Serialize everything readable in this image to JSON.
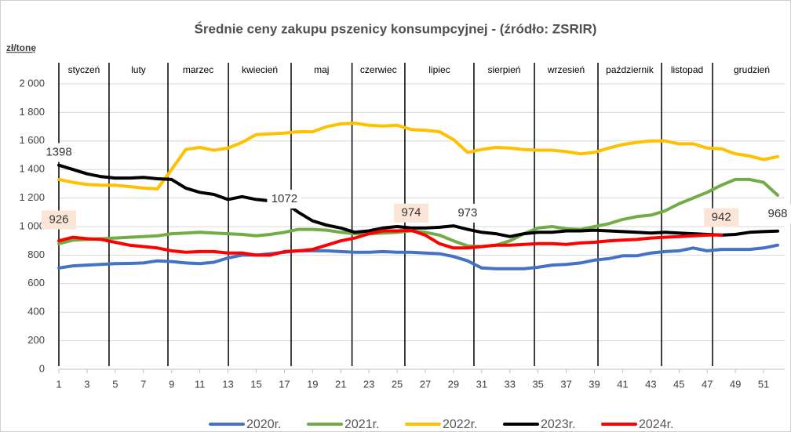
{
  "chart_data": {
    "type": "line",
    "title": "Średnie ceny zakupu pszenicy konsumpcyjnej - (źródło: ZSRIR)",
    "y_axis_label": "zł/tonę",
    "x": [
      1,
      2,
      3,
      4,
      5,
      6,
      7,
      8,
      9,
      10,
      11,
      12,
      13,
      14,
      15,
      16,
      17,
      18,
      19,
      20,
      21,
      22,
      23,
      24,
      25,
      26,
      27,
      28,
      29,
      30,
      31,
      32,
      33,
      34,
      35,
      36,
      37,
      38,
      39,
      40,
      41,
      42,
      43,
      44,
      45,
      46,
      47,
      48,
      49,
      50,
      51,
      52
    ],
    "xlim": [
      1,
      52.5
    ],
    "xticks": [
      1,
      3,
      5,
      7,
      9,
      11,
      13,
      15,
      17,
      19,
      21,
      23,
      25,
      27,
      29,
      31,
      33,
      35,
      37,
      39,
      41,
      43,
      45,
      47,
      49,
      51
    ],
    "ylim": [
      0,
      2000
    ],
    "yticks": [
      0,
      200,
      400,
      600,
      800,
      {
        "value": 1000,
        "label": "1 000"
      },
      {
        "value": 1200,
        "label": "1 200"
      },
      {
        "value": 1400,
        "label": "1 400"
      },
      {
        "value": 1600,
        "label": "1 600"
      },
      {
        "value": 1800,
        "label": "1 800"
      },
      {
        "value": 2000,
        "label": "2 000"
      }
    ],
    "grid": true,
    "months": [
      "styczeń",
      "luty",
      "marzec",
      "kwiecień",
      "maj",
      "czerwiec",
      "lipiec",
      "sierpień",
      "wrzesień",
      "październik",
      "listopad",
      "grudzień"
    ],
    "month_boundaries": [
      1,
      4.56,
      8.74,
      13.03,
      17.48,
      21.8,
      25.55,
      30.45,
      34.74,
      39.25,
      43.76,
      47.38
    ],
    "series": [
      {
        "name": "2020r.",
        "color": "#4472c4",
        "values": [
          710,
          725,
          730,
          735,
          740,
          742,
          745,
          760,
          755,
          745,
          740,
          750,
          780,
          800,
          800,
          810,
          820,
          830,
          830,
          830,
          825,
          820,
          820,
          825,
          820,
          820,
          815,
          810,
          790,
          760,
          710,
          705,
          705,
          705,
          715,
          730,
          735,
          745,
          765,
          775,
          795,
          795,
          815,
          825,
          830,
          850,
          830,
          840,
          840,
          840,
          850,
          870
        ]
      },
      {
        "name": "2021r.",
        "color": "#70ad47",
        "values": [
          880,
          905,
          910,
          915,
          920,
          925,
          930,
          935,
          950,
          955,
          960,
          955,
          950,
          945,
          935,
          945,
          960,
          980,
          980,
          975,
          960,
          950,
          950,
          955,
          960,
          970,
          960,
          940,
          900,
          865,
          860,
          870,
          900,
          950,
          990,
          1000,
          985,
          980,
          1000,
          1020,
          1050,
          1070,
          1080,
          1110,
          1160,
          1200,
          1240,
          1290,
          1330,
          1330,
          1310,
          1220
        ]
      },
      {
        "name": "2022r.",
        "color": "#ffc000",
        "values": [
          1330,
          1310,
          1295,
          1290,
          1290,
          1280,
          1270,
          1265,
          1400,
          1540,
          1555,
          1535,
          1550,
          1590,
          1645,
          1650,
          1655,
          1665,
          1665,
          1700,
          1720,
          1725,
          1710,
          1705,
          1710,
          1680,
          1675,
          1665,
          1610,
          1520,
          1540,
          1555,
          1550,
          1540,
          1535,
          1535,
          1525,
          1510,
          1520,
          1550,
          1575,
          1590,
          1600,
          1600,
          1580,
          1580,
          1550,
          1545,
          1510,
          1495,
          1470,
          1490
        ]
      },
      {
        "name": "2023r.",
        "color": "#000000",
        "values": [
          1430,
          1400,
          1370,
          1350,
          1340,
          1340,
          1345,
          1335,
          1330,
          1270,
          1240,
          1225,
          1190,
          1210,
          1190,
          1180,
          1170,
          1100,
          1040,
          1010,
          990,
          960,
          970,
          990,
          1000,
          990,
          990,
          995,
          1005,
          980,
          960,
          950,
          930,
          950,
          960,
          960,
          970,
          970,
          975,
          970,
          965,
          960,
          955,
          960,
          955,
          950,
          945,
          940,
          945,
          960,
          965,
          968
        ]
      },
      {
        "name": "2024r.",
        "color": "#ff0000",
        "values": [
          900,
          925,
          915,
          910,
          890,
          870,
          860,
          850,
          830,
          820,
          825,
          825,
          815,
          815,
          800,
          800,
          825,
          830,
          840,
          870,
          900,
          920,
          950,
          970,
          970,
          974,
          940,
          880,
          850,
          850,
          860,
          870,
          870,
          875,
          880,
          880,
          875,
          885,
          890,
          900,
          905,
          910,
          920,
          925,
          930,
          935,
          940,
          942,
          null,
          null,
          null,
          null
        ]
      }
    ],
    "annotations": [
      {
        "value": 1398,
        "x": 1,
        "background": "#ffffff"
      },
      {
        "value": 926,
        "x": 1,
        "background": "#fbe5d6"
      },
      {
        "value": 1072,
        "x": 17,
        "background": "#ffffff"
      },
      {
        "value": 974,
        "x": 26,
        "background": "#fbe5d6"
      },
      {
        "value": 973,
        "x": 30,
        "background": "#ffffff"
      },
      {
        "value": 942,
        "x": 48,
        "background": "#fbe5d6"
      },
      {
        "value": 968,
        "x": 52,
        "background": "#ffffff"
      }
    ]
  }
}
